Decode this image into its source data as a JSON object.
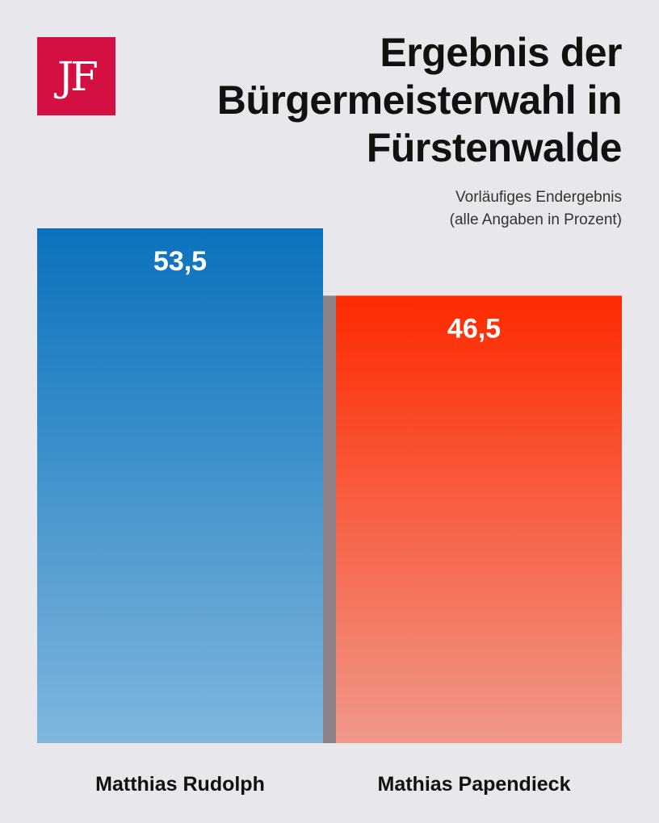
{
  "logo": {
    "text": "JF",
    "color": "#d41042"
  },
  "title": "Ergebnis der Bürgermeisterwahl in Fürstenwalde",
  "subtitle": {
    "line1": "Vorläufiges Endergebnis",
    "line2": "(alle Angaben in Prozent)"
  },
  "chart_data": {
    "type": "bar",
    "title": "Ergebnis der Bürgermeisterwahl in Fürstenwalde",
    "subtitle": "Vorläufiges Endergebnis (alle Angaben in Prozent)",
    "categories": [
      "Matthias Rudolph",
      "Mathias Papendieck"
    ],
    "values": [
      53.5,
      46.5
    ],
    "value_labels": [
      "53,5",
      "46,5"
    ],
    "ylim": [
      0,
      55.3
    ],
    "grid": false,
    "legend": "none",
    "colors": [
      {
        "top": "#0a72bd",
        "bottom": "#7fb6dd"
      },
      {
        "top": "#ff2a00",
        "bottom": "#f0988a"
      }
    ],
    "shadow_color": "#7a6e74"
  }
}
